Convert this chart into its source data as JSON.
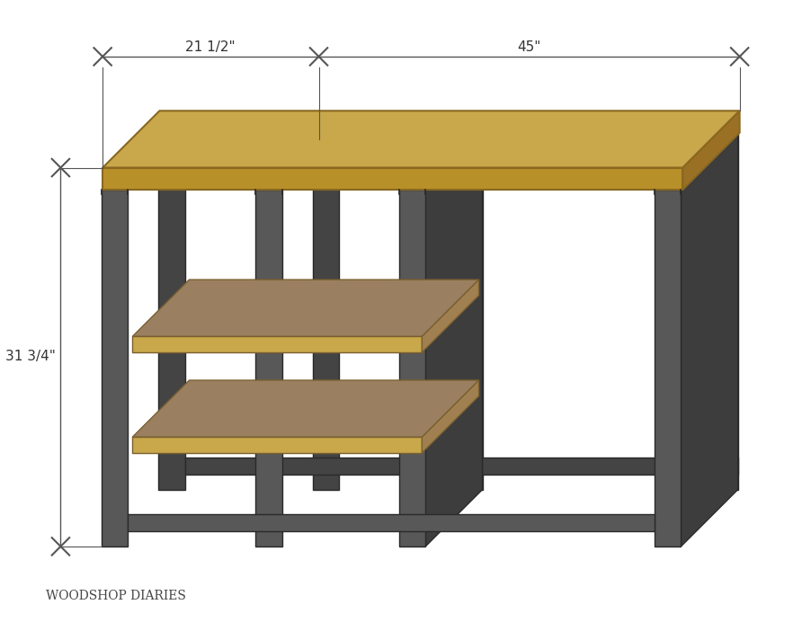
{
  "bg_color": "#ffffff",
  "leg_color": "#585858",
  "leg_color_dark": "#444444",
  "leg_color_side": "#3d3d3d",
  "wood_top_face": "#c8a84b",
  "wood_top_side_front": "#b8902a",
  "wood_top_side_right": "#9a7025",
  "wood_shelf_top": "#9a8060",
  "wood_shelf_front": "#c8a84b",
  "wood_shelf_right": "#a08050",
  "dim_line_color": "#555555",
  "dim_text_color": "#333333",
  "label_width1": "21 1/2\"",
  "label_width2": "45\"",
  "label_height": "31 3/4\"",
  "watermark": "WOODSHOP DIARIES",
  "fig_width": 8.82,
  "fig_height": 7.02,
  "dpi": 100
}
